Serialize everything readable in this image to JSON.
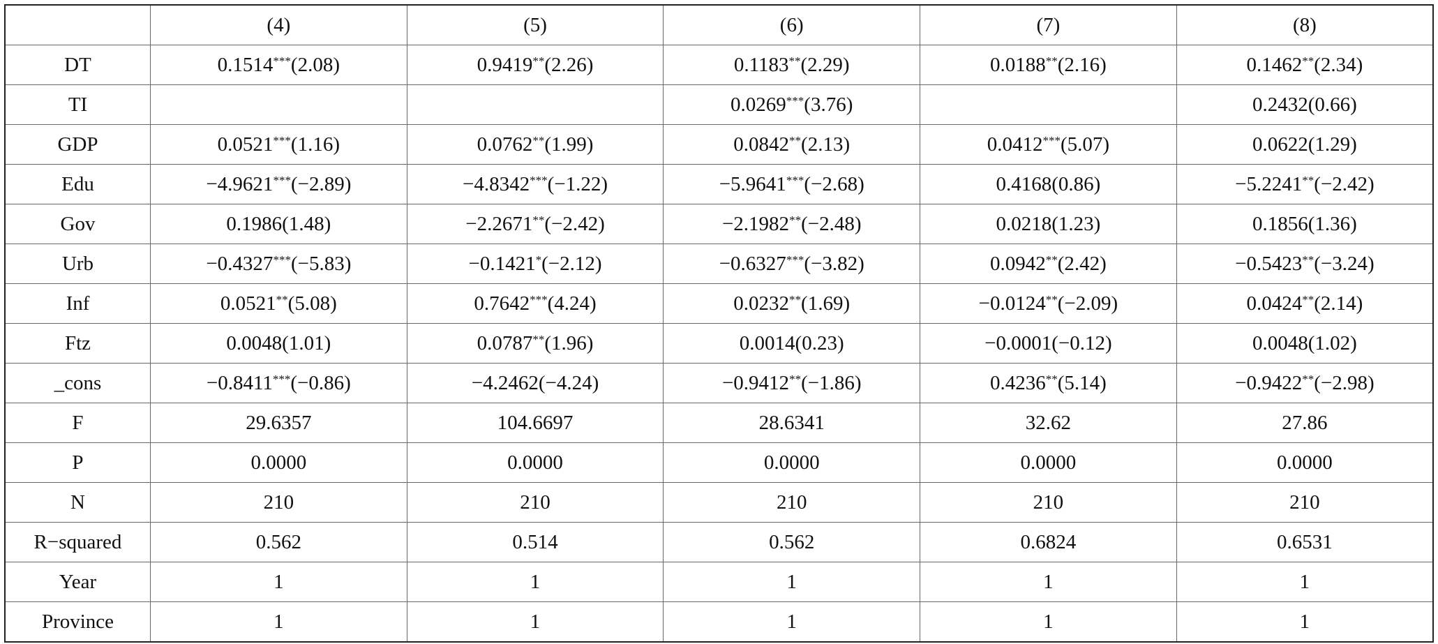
{
  "table": {
    "header": [
      "(4)",
      "(5)",
      "(6)",
      "(7)",
      "(8)"
    ],
    "rows": [
      {
        "label": "DT",
        "cells": [
          {
            "coef": "0.1514",
            "stars": "***",
            "t": "(2.08)"
          },
          {
            "coef": "0.9419",
            "stars": "**",
            "t": "(2.26)"
          },
          {
            "coef": "0.1183",
            "stars": "**",
            "t": "(2.29)"
          },
          {
            "coef": "0.0188",
            "stars": "**",
            "t": "(2.16)"
          },
          {
            "coef": "0.1462",
            "stars": "**",
            "t": "(2.34)"
          }
        ]
      },
      {
        "label": "TI",
        "cells": [
          null,
          null,
          {
            "coef": "0.0269",
            "stars": "***",
            "t": "(3.76)"
          },
          null,
          {
            "coef": "0.2432",
            "t": "(0.66)"
          }
        ]
      },
      {
        "label": "GDP",
        "cells": [
          {
            "coef": "0.0521",
            "stars": "***",
            "t": "(1.16)"
          },
          {
            "coef": "0.0762",
            "stars": "**",
            "t": "(1.99)"
          },
          {
            "coef": "0.0842",
            "stars": "**",
            "t": "(2.13)"
          },
          {
            "coef": "0.0412",
            "stars": "***",
            "t": "(5.07)"
          },
          {
            "coef": "0.0622",
            "t": "(1.29)"
          }
        ]
      },
      {
        "label": "Edu",
        "cells": [
          {
            "coef": "−4.9621",
            "stars": "***",
            "t": "(−2.89)"
          },
          {
            "coef": "−4.8342",
            "stars": "***",
            "t": "(−1.22)"
          },
          {
            "coef": "−5.9641",
            "stars": "***",
            "t": "(−2.68)"
          },
          {
            "coef": "0.4168",
            "t": "(0.86)"
          },
          {
            "coef": "−5.2241",
            "stars": "**",
            "t": "(−2.42)"
          }
        ]
      },
      {
        "label": "Gov",
        "cells": [
          {
            "coef": "0.1986",
            "t": "(1.48)"
          },
          {
            "coef": "−2.2671",
            "stars": "**",
            "t": "(−2.42)"
          },
          {
            "coef": "−2.1982",
            "stars": "**",
            "t": "(−2.48)"
          },
          {
            "coef": "0.0218",
            "t": "(1.23)"
          },
          {
            "coef": "0.1856",
            "t": "(1.36)"
          }
        ]
      },
      {
        "label": "Urb",
        "cells": [
          {
            "coef": "−0.4327",
            "stars": "***",
            "t": "(−5.83)"
          },
          {
            "coef": "−0.1421",
            "stars": "*",
            "t": "(−2.12)"
          },
          {
            "coef": "−0.6327",
            "stars": "***",
            "t": "(−3.82)"
          },
          {
            "coef": "0.0942",
            "stars": "**",
            "t": "(2.42)"
          },
          {
            "coef": "−0.5423",
            "stars": "**",
            "t": "(−3.24)"
          }
        ]
      },
      {
        "label": "Inf",
        "cells": [
          {
            "coef": "0.0521",
            "stars": "**",
            "t": "(5.08)"
          },
          {
            "coef": "0.7642",
            "stars": "***",
            "t": "(4.24)"
          },
          {
            "coef": "0.0232",
            "stars": "**",
            "t": "(1.69)"
          },
          {
            "coef": "−0.0124",
            "stars": "**",
            "t": "(−2.09)"
          },
          {
            "coef": "0.0424",
            "stars": "**",
            "t": "(2.14)"
          }
        ]
      },
      {
        "label": "Ftz",
        "cells": [
          {
            "coef": "0.0048",
            "t": "(1.01)"
          },
          {
            "coef": "0.0787",
            "stars": "**",
            "t": "(1.96)"
          },
          {
            "coef": "0.0014",
            "t": "(0.23)"
          },
          {
            "coef": "−0.0001",
            "t": "(−0.12)"
          },
          {
            "coef": "0.0048",
            "t": "(1.02)"
          }
        ]
      },
      {
        "label": "_cons",
        "cells": [
          {
            "coef": "−0.8411",
            "stars": "***",
            "t": "(−0.86)"
          },
          {
            "coef": "−4.2462",
            "t": "(−4.24)"
          },
          {
            "coef": "−0.9412",
            "stars": "**",
            "t": "(−1.86)"
          },
          {
            "coef": "0.4236",
            "stars": "**",
            "t": "(5.14)"
          },
          {
            "coef": "−0.9422",
            "stars": "**",
            "t": "(−2.98)"
          }
        ]
      },
      {
        "label": "F",
        "cells": [
          "29.6357",
          "104.6697",
          "28.6341",
          "32.62",
          "27.86"
        ]
      },
      {
        "label": "P",
        "cells": [
          "0.0000",
          "0.0000",
          "0.0000",
          "0.0000",
          "0.0000"
        ]
      },
      {
        "label": "N",
        "cells": [
          "210",
          "210",
          "210",
          "210",
          "210"
        ]
      },
      {
        "label": "R−squared",
        "cells": [
          "0.562",
          "0.514",
          "0.562",
          "0.6824",
          "0.6531"
        ]
      },
      {
        "label": "Year",
        "cells": [
          "1",
          "1",
          "1",
          "1",
          "1"
        ]
      },
      {
        "label": "Province",
        "cells": [
          "1",
          "1",
          "1",
          "1",
          "1"
        ]
      }
    ]
  }
}
